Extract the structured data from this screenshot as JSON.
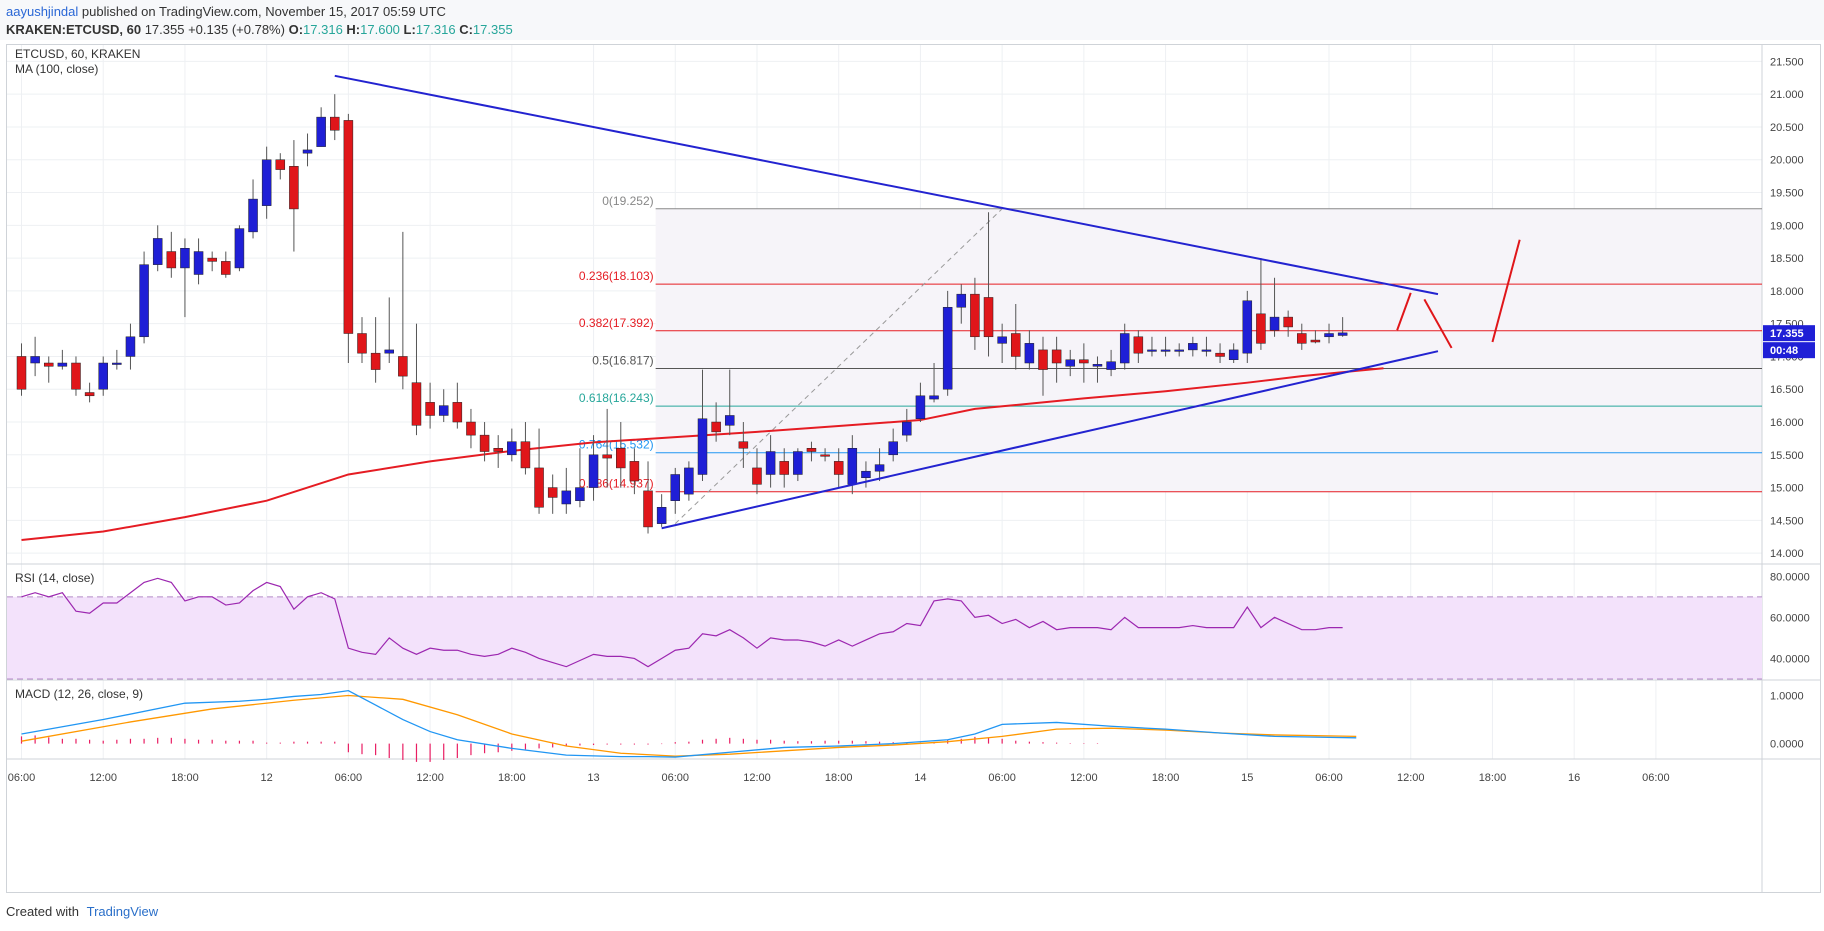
{
  "header": {
    "author": "aayushjindal",
    "published": "published on TradingView.com, November 15, 2017 05:59 UTC",
    "symbol": "KRAKEN:ETCUSD, 60",
    "last": "17.355",
    "change": "+0.135 (+0.78%)",
    "ohlc_o_label": "O:",
    "ohlc_o": "17.316",
    "ohlc_h_label": "H:",
    "ohlc_h": "17.600",
    "ohlc_l_label": "L:",
    "ohlc_l": "17.316",
    "ohlc_c_label": "C:",
    "ohlc_c": "17.355"
  },
  "footer": {
    "created_with": "Created with",
    "brand": "TradingView"
  },
  "colors": {
    "up": "#1f1fd6",
    "down": "#e0161a",
    "ma": "#e51c23",
    "trend": "#2323d0",
    "rsi": "#9c27b0",
    "rsi_bg": "#f3e2fb",
    "macd": "#2196f3",
    "signal": "#ff9800",
    "hist": "#e91e63"
  },
  "chart_data": {
    "type": "candlestick",
    "title": "ETCUSD, 60, KRAKEN",
    "indicator_label": "MA (100, close)",
    "ylim": [
      13.85,
      21.75
    ],
    "y_ticks": [
      "21.500",
      "21.000",
      "20.500",
      "20.000",
      "19.500",
      "19.000",
      "18.500",
      "18.000",
      "17.500",
      "17.000",
      "16.500",
      "16.000",
      "15.500",
      "15.000",
      "14.500",
      "14.000"
    ],
    "x_ticks": [
      {
        "slot": 0,
        "label": "06:00"
      },
      {
        "slot": 6,
        "label": "12:00"
      },
      {
        "slot": 12,
        "label": "18:00"
      },
      {
        "slot": 18,
        "label": "12"
      },
      {
        "slot": 24,
        "label": "06:00"
      },
      {
        "slot": 30,
        "label": "12:00"
      },
      {
        "slot": 36,
        "label": "18:00"
      },
      {
        "slot": 42,
        "label": "13"
      },
      {
        "slot": 48,
        "label": "06:00"
      },
      {
        "slot": 54,
        "label": "12:00"
      },
      {
        "slot": 60,
        "label": "18:00"
      },
      {
        "slot": 66,
        "label": "14"
      },
      {
        "slot": 72,
        "label": "06:00"
      },
      {
        "slot": 78,
        "label": "12:00"
      },
      {
        "slot": 84,
        "label": "18:00"
      },
      {
        "slot": 90,
        "label": "15"
      },
      {
        "slot": 96,
        "label": "06:00"
      },
      {
        "slot": 102,
        "label": "12:00"
      },
      {
        "slot": 108,
        "label": "18:00"
      },
      {
        "slot": 114,
        "label": "16"
      },
      {
        "slot": 120,
        "label": "06:00"
      }
    ],
    "candles": [
      [
        17.0,
        16.5,
        17.2,
        16.4
      ],
      [
        16.9,
        17.0,
        17.3,
        16.7
      ],
      [
        16.9,
        16.85,
        17.0,
        16.6
      ],
      [
        16.85,
        16.9,
        17.1,
        16.8
      ],
      [
        16.9,
        16.5,
        17.0,
        16.4
      ],
      [
        16.45,
        16.4,
        16.6,
        16.3
      ],
      [
        16.5,
        16.9,
        17.0,
        16.4
      ],
      [
        16.9,
        16.9,
        17.1,
        16.8
      ],
      [
        17.0,
        17.3,
        17.5,
        16.8
      ],
      [
        17.3,
        18.4,
        18.6,
        17.2
      ],
      [
        18.4,
        18.8,
        19.0,
        18.3
      ],
      [
        18.6,
        18.35,
        18.9,
        18.2
      ],
      [
        18.35,
        18.65,
        18.8,
        17.6
      ],
      [
        18.25,
        18.6,
        18.8,
        18.1
      ],
      [
        18.5,
        18.45,
        18.6,
        18.3
      ],
      [
        18.45,
        18.25,
        18.6,
        18.2
      ],
      [
        18.35,
        18.95,
        19.0,
        18.3
      ],
      [
        18.9,
        19.4,
        19.7,
        18.8
      ],
      [
        19.3,
        20.0,
        20.2,
        19.1
      ],
      [
        20.0,
        19.85,
        20.1,
        19.7
      ],
      [
        19.9,
        19.25,
        20.3,
        18.6
      ],
      [
        20.1,
        20.15,
        20.4,
        19.9
      ],
      [
        20.2,
        20.65,
        20.8,
        20.2
      ],
      [
        20.65,
        20.45,
        21.0,
        20.3
      ],
      [
        20.6,
        17.35,
        20.7,
        16.9
      ],
      [
        17.35,
        17.05,
        17.6,
        16.9
      ],
      [
        17.05,
        16.8,
        17.6,
        16.6
      ],
      [
        17.05,
        17.1,
        17.9,
        16.9
      ],
      [
        17.0,
        16.7,
        18.9,
        16.5
      ],
      [
        16.6,
        15.95,
        17.5,
        15.8
      ],
      [
        16.3,
        16.1,
        16.6,
        15.9
      ],
      [
        16.1,
        16.25,
        16.5,
        16.0
      ],
      [
        16.3,
        16.0,
        16.6,
        15.9
      ],
      [
        16.0,
        15.8,
        16.2,
        15.6
      ],
      [
        15.8,
        15.55,
        16.0,
        15.4
      ],
      [
        15.6,
        15.55,
        15.8,
        15.3
      ],
      [
        15.5,
        15.7,
        15.9,
        15.4
      ],
      [
        15.7,
        15.3,
        16.0,
        15.2
      ],
      [
        15.3,
        14.7,
        15.9,
        14.6
      ],
      [
        15.0,
        14.85,
        15.2,
        14.6
      ],
      [
        14.75,
        14.95,
        15.3,
        14.6
      ],
      [
        14.8,
        15.0,
        15.6,
        14.7
      ],
      [
        15.0,
        15.5,
        15.8,
        14.8
      ],
      [
        15.5,
        15.45,
        16.2,
        15.0
      ],
      [
        15.6,
        15.3,
        16.0,
        15.0
      ],
      [
        15.4,
        15.1,
        15.6,
        14.9
      ],
      [
        14.95,
        14.4,
        15.4,
        14.3
      ],
      [
        14.45,
        14.7,
        14.9,
        14.4
      ],
      [
        14.8,
        15.2,
        15.3,
        14.6
      ],
      [
        14.9,
        15.3,
        15.4,
        14.8
      ],
      [
        15.2,
        16.05,
        16.8,
        15.1
      ],
      [
        16.0,
        15.85,
        16.3,
        15.7
      ],
      [
        15.95,
        16.1,
        16.8,
        15.8
      ],
      [
        15.7,
        15.6,
        16.0,
        15.3
      ],
      [
        15.3,
        15.05,
        15.6,
        14.9
      ],
      [
        15.2,
        15.55,
        15.8,
        15.0
      ],
      [
        15.4,
        15.2,
        15.6,
        15.0
      ],
      [
        15.2,
        15.55,
        15.6,
        15.1
      ],
      [
        15.6,
        15.55,
        15.7,
        15.4
      ],
      [
        15.5,
        15.48,
        15.6,
        15.4
      ],
      [
        15.4,
        15.2,
        15.6,
        15.0
      ],
      [
        15.05,
        15.6,
        15.8,
        14.9
      ],
      [
        15.15,
        15.25,
        15.4,
        15.0
      ],
      [
        15.25,
        15.35,
        15.6,
        15.1
      ],
      [
        15.5,
        15.7,
        15.9,
        15.4
      ],
      [
        15.8,
        16.0,
        16.2,
        15.7
      ],
      [
        16.05,
        16.4,
        16.6,
        16.0
      ],
      [
        16.35,
        16.4,
        16.9,
        16.3
      ],
      [
        16.5,
        17.75,
        18.0,
        16.4
      ],
      [
        17.75,
        17.95,
        18.1,
        17.5
      ],
      [
        17.95,
        17.3,
        18.2,
        17.1
      ],
      [
        17.9,
        17.3,
        19.2,
        17.0
      ],
      [
        17.2,
        17.3,
        17.5,
        16.9
      ],
      [
        17.35,
        17.0,
        17.8,
        16.8
      ],
      [
        16.9,
        17.2,
        17.4,
        16.8
      ],
      [
        17.1,
        16.8,
        17.3,
        16.4
      ],
      [
        17.1,
        16.9,
        17.3,
        16.6
      ],
      [
        16.85,
        16.95,
        17.1,
        16.7
      ],
      [
        16.95,
        16.9,
        17.2,
        16.6
      ],
      [
        16.85,
        16.88,
        17.0,
        16.6
      ],
      [
        16.8,
        16.92,
        17.1,
        16.7
      ],
      [
        16.9,
        17.35,
        17.5,
        16.8
      ],
      [
        17.3,
        17.05,
        17.4,
        16.9
      ],
      [
        17.1,
        17.1,
        17.3,
        17.0
      ],
      [
        17.1,
        17.1,
        17.3,
        17.0
      ],
      [
        17.1,
        17.1,
        17.2,
        17.0
      ],
      [
        17.1,
        17.2,
        17.3,
        17.0
      ],
      [
        17.1,
        17.1,
        17.3,
        17.0
      ],
      [
        17.05,
        17.0,
        17.2,
        16.9
      ],
      [
        16.95,
        17.1,
        17.2,
        16.9
      ],
      [
        17.05,
        17.85,
        18.0,
        16.9
      ],
      [
        17.65,
        17.2,
        18.5,
        17.1
      ],
      [
        17.4,
        17.6,
        18.2,
        17.3
      ],
      [
        17.6,
        17.45,
        17.7,
        17.3
      ],
      [
        17.35,
        17.2,
        17.5,
        17.1
      ],
      [
        17.25,
        17.22,
        17.4,
        17.2
      ],
      [
        17.3,
        17.35,
        17.5,
        17.2
      ],
      [
        17.32,
        17.36,
        17.6,
        17.3
      ]
    ],
    "ma_100": [
      [
        0,
        14.2
      ],
      [
        6,
        14.33
      ],
      [
        12,
        14.55
      ],
      [
        18,
        14.8
      ],
      [
        24,
        15.2
      ],
      [
        30,
        15.4
      ],
      [
        36,
        15.56
      ],
      [
        42,
        15.69
      ],
      [
        48,
        15.77
      ],
      [
        54,
        15.85
      ],
      [
        60,
        15.94
      ],
      [
        66,
        16.03
      ],
      [
        70,
        16.2
      ],
      [
        78,
        16.36
      ],
      [
        84,
        16.47
      ],
      [
        90,
        16.6
      ],
      [
        94,
        16.7
      ],
      [
        98,
        16.78
      ],
      [
        100,
        16.82
      ]
    ],
    "trend_lines": [
      {
        "name": "resistance",
        "from": [
          23,
          21.28
        ],
        "to": [
          104,
          17.95
        ]
      },
      {
        "name": "support",
        "from": [
          47,
          14.38
        ],
        "to": [
          104,
          17.08
        ]
      }
    ],
    "zigzag": [
      [
        [
          101,
          17.4
        ],
        [
          102,
          17.97
        ]
      ],
      [
        [
          103,
          17.87
        ],
        [
          105,
          17.13
        ]
      ],
      [
        [
          108,
          17.22
        ],
        [
          110,
          18.78
        ]
      ]
    ],
    "fib_anchor_line": {
      "from": [
        48,
        14.45
      ],
      "to": [
        72,
        19.252
      ]
    },
    "fib_levels": [
      {
        "ratio": "0",
        "label": "0(19.252)",
        "value": 19.252,
        "color": "#888888"
      },
      {
        "ratio": "0.236",
        "label": "0.236(18.103)",
        "value": 18.103,
        "color": "#e51c23"
      },
      {
        "ratio": "0.382",
        "label": "0.382(17.392)",
        "value": 17.392,
        "color": "#e51c23"
      },
      {
        "ratio": "0.5",
        "label": "0.5(16.817)",
        "value": 16.817,
        "color": "#555555"
      },
      {
        "ratio": "0.618",
        "label": "0.618(16.243)",
        "value": 16.243,
        "color": "#26a69a"
      },
      {
        "ratio": "0.764",
        "label": "0.764(15.532)",
        "value": 15.532,
        "color": "#2196f3"
      },
      {
        "ratio": "0.886",
        "label": "0.886(14.937)",
        "value": 14.937,
        "color": "#e51c23"
      }
    ],
    "price_tag": "17.355",
    "countdown_tag": "00:48",
    "rsi": {
      "label": "RSI (14, close)",
      "ylim": [
        30,
        85
      ],
      "ticks": [
        "80.0000",
        "60.0000",
        "40.0000"
      ],
      "bands": [
        30,
        70
      ],
      "values": [
        70,
        72,
        70,
        72,
        63,
        62,
        67,
        67,
        72,
        77,
        79,
        77,
        68,
        70,
        70,
        66,
        67,
        73,
        77,
        75,
        64,
        70,
        72,
        69,
        45,
        43,
        42,
        50,
        45,
        42,
        45,
        44,
        44,
        42,
        41,
        42,
        45,
        43,
        40,
        38,
        36,
        39,
        42,
        41,
        41,
        40,
        36,
        40,
        44,
        45,
        52,
        51,
        54,
        50,
        45,
        50,
        49,
        49,
        48,
        46,
        49,
        46,
        49,
        52,
        53,
        57,
        56,
        68,
        69,
        68,
        60,
        61,
        57,
        59,
        55,
        58,
        54,
        55,
        55,
        55,
        54,
        60,
        55,
        55,
        55,
        55,
        56,
        55,
        55,
        55,
        65,
        55,
        60,
        57,
        54,
        54,
        55,
        55
      ]
    },
    "macd": {
      "label": "MACD (12, 26, close, 9)",
      "ylim": [
        -0.32,
        1.28
      ],
      "ticks": [
        "1.0000",
        "0.0000"
      ],
      "macd": [
        [
          0,
          0.2
        ],
        [
          6,
          0.5
        ],
        [
          12,
          0.84
        ],
        [
          16,
          0.88
        ],
        [
          18,
          0.92
        ],
        [
          20,
          0.98
        ],
        [
          22,
          1.02
        ],
        [
          24,
          1.1
        ],
        [
          26,
          0.8
        ],
        [
          28,
          0.5
        ],
        [
          30,
          0.25
        ],
        [
          32,
          0.08
        ],
        [
          36,
          -0.1
        ],
        [
          40,
          -0.24
        ],
        [
          44,
          -0.27
        ],
        [
          46,
          -0.27
        ],
        [
          48,
          -0.28
        ],
        [
          52,
          -0.18
        ],
        [
          56,
          -0.08
        ],
        [
          60,
          -0.05
        ],
        [
          64,
          0.0
        ],
        [
          68,
          0.08
        ],
        [
          70,
          0.2
        ],
        [
          72,
          0.4
        ],
        [
          76,
          0.44
        ],
        [
          80,
          0.36
        ],
        [
          84,
          0.3
        ],
        [
          88,
          0.22
        ],
        [
          92,
          0.15
        ],
        [
          96,
          0.13
        ],
        [
          98,
          0.12
        ]
      ],
      "signal": [
        [
          0,
          0.05
        ],
        [
          8,
          0.45
        ],
        [
          14,
          0.72
        ],
        [
          20,
          0.9
        ],
        [
          24,
          1.0
        ],
        [
          28,
          0.92
        ],
        [
          32,
          0.6
        ],
        [
          36,
          0.2
        ],
        [
          40,
          -0.05
        ],
        [
          44,
          -0.2
        ],
        [
          48,
          -0.26
        ],
        [
          52,
          -0.22
        ],
        [
          56,
          -0.15
        ],
        [
          60,
          -0.08
        ],
        [
          64,
          -0.03
        ],
        [
          68,
          0.04
        ],
        [
          72,
          0.15
        ],
        [
          76,
          0.3
        ],
        [
          80,
          0.32
        ],
        [
          84,
          0.28
        ],
        [
          88,
          0.22
        ],
        [
          92,
          0.18
        ],
        [
          96,
          0.16
        ],
        [
          98,
          0.15
        ]
      ],
      "hist": [
        0.15,
        0.17,
        0.13,
        0.1,
        0.1,
        0.08,
        0.06,
        0.08,
        0.1,
        0.1,
        0.12,
        0.12,
        0.1,
        0.08,
        0.08,
        0.06,
        0.06,
        0.06,
        0.02,
        0.02,
        0.04,
        0.04,
        0.04,
        0.04,
        -0.18,
        -0.22,
        -0.24,
        -0.3,
        -0.34,
        -0.38,
        -0.38,
        -0.34,
        -0.3,
        -0.24,
        -0.2,
        -0.18,
        -0.15,
        -0.12,
        -0.1,
        -0.08,
        -0.06,
        -0.04,
        -0.03,
        -0.02,
        -0.02,
        -0.02,
        -0.02,
        -0.01,
        0.03,
        0.04,
        0.08,
        0.1,
        0.12,
        0.1,
        0.08,
        0.08,
        0.06,
        0.05,
        0.05,
        0.06,
        0.06,
        0.06,
        0.05,
        0.04,
        0.03,
        0.02,
        0.02,
        0.03,
        0.07,
        0.1,
        0.14,
        0.12,
        0.1,
        0.06,
        0.04,
        0.03,
        0.02,
        0.01,
        0.01,
        0.01,
        0.0,
        0.0,
        0.0,
        0.0,
        0.0,
        0.0,
        0.0,
        0.0,
        0.0,
        0.0,
        0.0,
        0.0,
        0.0,
        0.0,
        0.0,
        0.0,
        0.0,
        0.0
      ]
    }
  }
}
